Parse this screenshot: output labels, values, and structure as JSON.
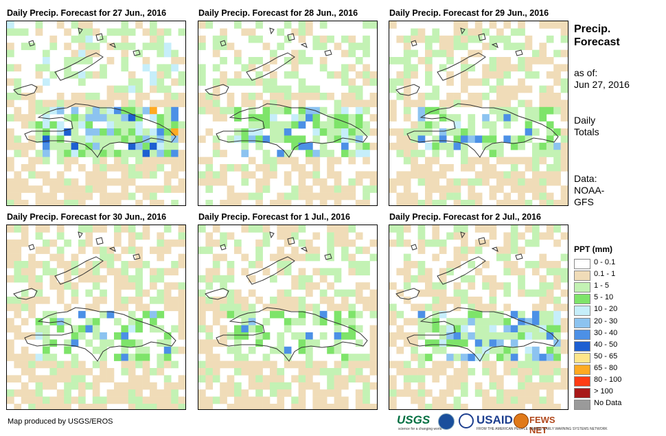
{
  "panels": [
    {
      "title": "Daily Precip. Forecast for 27 Jun., 2016",
      "variant": 0
    },
    {
      "title": "Daily Precip. Forecast for 28 Jun., 2016",
      "variant": 1
    },
    {
      "title": "Daily Precip. Forecast for 29 Jun., 2016",
      "variant": 2
    },
    {
      "title": "Daily Precip. Forecast for 30 Jun., 2016",
      "variant": 3
    },
    {
      "title": "Daily Precip. Forecast for 1 Jul., 2016",
      "variant": 4
    },
    {
      "title": "Daily Precip. Forecast for 2 Jul., 2016",
      "variant": 5
    }
  ],
  "side": {
    "title_line1": "Precip.",
    "title_line2": "Forecast",
    "asof_label": "as of:",
    "asof_date": "Jun 27, 2016",
    "daily_line1": "Daily",
    "daily_line2": "Totals",
    "data_line1": "Data:",
    "data_line2": "NOAA-",
    "data_line3": "GFS"
  },
  "legend": {
    "title": "PPT (mm)",
    "items": [
      {
        "label": "0 - 0.1",
        "color": "#ffffff"
      },
      {
        "label": "0.1 - 1",
        "color": "#f0dcb8"
      },
      {
        "label": "1 - 5",
        "color": "#c3f2b4"
      },
      {
        "label": "5 - 10",
        "color": "#7ee46a"
      },
      {
        "label": "10 - 20",
        "color": "#c6eefa"
      },
      {
        "label": "20 - 30",
        "color": "#8cc3f0"
      },
      {
        "label": "30 - 40",
        "color": "#4c90e6"
      },
      {
        "label": "40 - 50",
        "color": "#1d5fd1"
      },
      {
        "label": "50 - 65",
        "color": "#ffe68a"
      },
      {
        "label": "65 - 80",
        "color": "#ffaa22"
      },
      {
        "label": "80 - 100",
        "color": "#ff3c14"
      },
      {
        "label": "> 100",
        "color": "#a81818"
      },
      {
        "label": "No Data",
        "color": "#9a9a9a"
      }
    ]
  },
  "credit": "Map produced by USGS/EROS",
  "logos": {
    "usgs": "USGS",
    "usgs_tagline": "science for a changing world",
    "usaid": "USAID",
    "usaid_tagline": "FROM THE AMERICAN PEOPLE",
    "fews": "FEWS NET",
    "fews_tagline": "FAMINE EARLY WARNING SYSTEMS NETWORK"
  }
}
